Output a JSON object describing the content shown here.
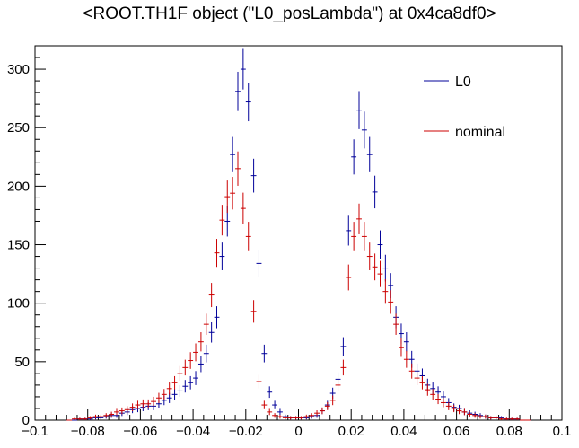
{
  "chart_data": {
    "type": "scatter",
    "title": "<ROOT.TH1F object (\"L0_posLambda\") at 0x4ca8df0>",
    "xlabel": "",
    "ylabel": "",
    "xlim": [
      -0.1,
      0.1
    ],
    "ylim": [
      0,
      320
    ],
    "x_ticks": [
      "−0.1",
      "−0.08",
      "−0.06",
      "−0.04",
      "−0.02",
      "0",
      "0.02",
      "0.04",
      "0.06",
      "0.08",
      "0.1"
    ],
    "x_tick_values": [
      -0.1,
      -0.08,
      -0.06,
      -0.04,
      -0.02,
      0,
      0.02,
      0.04,
      0.06,
      0.08,
      0.1
    ],
    "y_ticks": [
      "0",
      "50",
      "100",
      "150",
      "200",
      "250",
      "300"
    ],
    "y_tick_values": [
      0,
      50,
      100,
      150,
      200,
      250,
      300
    ],
    "bin_width": 0.002,
    "legend_position": "top-right",
    "series": [
      {
        "name": "L0",
        "color": "#000099",
        "x": [
          -0.087,
          -0.085,
          -0.083,
          -0.081,
          -0.079,
          -0.077,
          -0.075,
          -0.073,
          -0.071,
          -0.069,
          -0.067,
          -0.065,
          -0.063,
          -0.061,
          -0.059,
          -0.057,
          -0.055,
          -0.053,
          -0.051,
          -0.049,
          -0.047,
          -0.045,
          -0.043,
          -0.041,
          -0.039,
          -0.037,
          -0.035,
          -0.033,
          -0.031,
          -0.029,
          -0.027,
          -0.025,
          -0.023,
          -0.021,
          -0.019,
          -0.017,
          -0.015,
          -0.013,
          -0.011,
          -0.009,
          -0.007,
          -0.005,
          -0.003,
          -0.001,
          0.001,
          0.003,
          0.005,
          0.007,
          0.009,
          0.011,
          0.013,
          0.015,
          0.017,
          0.019,
          0.021,
          0.023,
          0.025,
          0.027,
          0.029,
          0.031,
          0.033,
          0.035,
          0.037,
          0.039,
          0.041,
          0.043,
          0.045,
          0.047,
          0.049,
          0.051,
          0.053,
          0.055,
          0.057,
          0.059,
          0.061,
          0.063,
          0.065,
          0.067,
          0.069,
          0.071,
          0.073,
          0.075,
          0.077,
          0.079,
          0.081,
          0.083,
          0.085,
          0.087
        ],
        "values": [
          0,
          0,
          1,
          1,
          1,
          2,
          2,
          3,
          4,
          4,
          6,
          7,
          9,
          10,
          11,
          12,
          12,
          14,
          17,
          19,
          22,
          25,
          29,
          32,
          36,
          48,
          57,
          75,
          88,
          140,
          170,
          227,
          281,
          300,
          272,
          209,
          134,
          57,
          24,
          13,
          7,
          3,
          2,
          2,
          2,
          2,
          3,
          4,
          8,
          13,
          23,
          35,
          63,
          162,
          225,
          265,
          248,
          227,
          195,
          150,
          130,
          115,
          88,
          74,
          67,
          52,
          42,
          38,
          30,
          27,
          24,
          20,
          15,
          11,
          10,
          7,
          6,
          5,
          4,
          3,
          2,
          2,
          2,
          1,
          1,
          1,
          0,
          0
        ]
      },
      {
        "name": "nominal",
        "color": "#cc0000",
        "x": [
          -0.087,
          -0.085,
          -0.083,
          -0.081,
          -0.079,
          -0.077,
          -0.075,
          -0.073,
          -0.071,
          -0.069,
          -0.067,
          -0.065,
          -0.063,
          -0.061,
          -0.059,
          -0.057,
          -0.055,
          -0.053,
          -0.051,
          -0.049,
          -0.047,
          -0.045,
          -0.043,
          -0.041,
          -0.039,
          -0.037,
          -0.035,
          -0.033,
          -0.031,
          -0.029,
          -0.027,
          -0.025,
          -0.023,
          -0.021,
          -0.019,
          -0.017,
          -0.015,
          -0.013,
          -0.011,
          -0.009,
          -0.007,
          -0.005,
          -0.003,
          -0.001,
          0.001,
          0.003,
          0.005,
          0.007,
          0.009,
          0.011,
          0.013,
          0.015,
          0.017,
          0.019,
          0.021,
          0.023,
          0.025,
          0.027,
          0.029,
          0.031,
          0.033,
          0.035,
          0.037,
          0.039,
          0.041,
          0.043,
          0.045,
          0.047,
          0.049,
          0.051,
          0.053,
          0.055,
          0.057,
          0.059,
          0.061,
          0.063,
          0.065,
          0.067,
          0.069,
          0.071,
          0.073,
          0.075,
          0.077,
          0.079,
          0.081,
          0.083,
          0.085,
          0.087
        ],
        "values": [
          0,
          1,
          1,
          1,
          2,
          3,
          3,
          4,
          5,
          7,
          8,
          9,
          11,
          13,
          14,
          14,
          16,
          19,
          22,
          27,
          32,
          40,
          45,
          51,
          58,
          67,
          82,
          107,
          143,
          171,
          191,
          194,
          215,
          181,
          157,
          93,
          33,
          13,
          7,
          4,
          3,
          2,
          2,
          2,
          2,
          3,
          4,
          6,
          8,
          12,
          17,
          30,
          45,
          122,
          157,
          172,
          157,
          140,
          131,
          125,
          110,
          101,
          82,
          62,
          52,
          42,
          36,
          32,
          26,
          22,
          18,
          15,
          12,
          10,
          8,
          7,
          5,
          4,
          3,
          3,
          2,
          2,
          1,
          1,
          1,
          1,
          0,
          0
        ]
      }
    ]
  }
}
